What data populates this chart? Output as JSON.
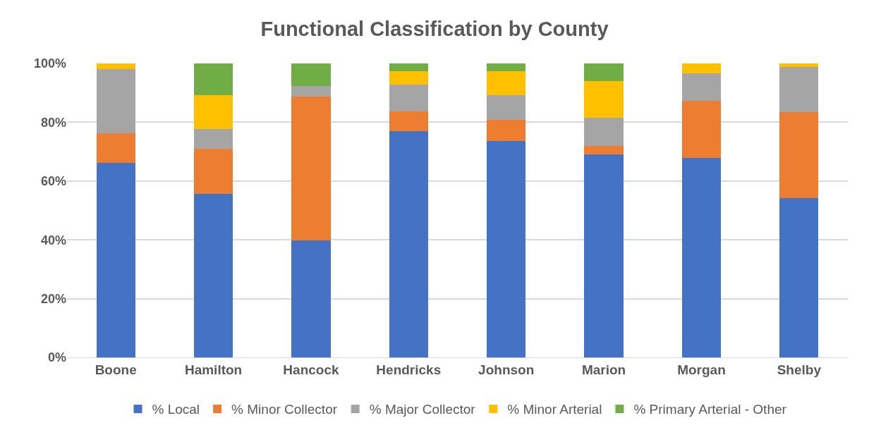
{
  "chart_data": {
    "type": "bar",
    "stacked": true,
    "title": "Functional Classification by County",
    "categories": [
      "Boone",
      "Hamilton",
      "Hancock",
      "Hendricks",
      "Johnson",
      "Marion",
      "Morgan",
      "Shelby"
    ],
    "series": [
      {
        "name": "% Local",
        "color": "#4472c4",
        "values": [
          66.2,
          55.7,
          39.7,
          77.0,
          73.7,
          69.0,
          67.9,
          54.1
        ]
      },
      {
        "name": "% Minor Collector",
        "color": "#ed7d31",
        "values": [
          10.1,
          15.4,
          49.0,
          6.6,
          7.1,
          3.0,
          19.4,
          29.4
        ]
      },
      {
        "name": "% Major Collector",
        "color": "#a5a5a5",
        "values": [
          21.7,
          6.7,
          3.6,
          9.1,
          8.3,
          9.5,
          9.4,
          15.4
        ]
      },
      {
        "name": "% Minor Arterial",
        "color": "#ffc000",
        "values": [
          2.0,
          11.3,
          0,
          4.7,
          8.3,
          12.5,
          3.3,
          1.1
        ]
      },
      {
        "name": "% Primary Arterial - Other",
        "color": "#70ad47",
        "values": [
          0,
          10.9,
          7.7,
          2.6,
          2.6,
          6.0,
          0,
          0
        ]
      }
    ],
    "ylim": [
      0,
      100
    ],
    "yticks": [
      {
        "value": 0,
        "label": "0%"
      },
      {
        "value": 20,
        "label": "20%"
      },
      {
        "value": 40,
        "label": "40%"
      },
      {
        "value": 60,
        "label": "60%"
      },
      {
        "value": 80,
        "label": "80%"
      },
      {
        "value": 100,
        "label": "100%"
      }
    ],
    "grid": "y",
    "legend": "bottom"
  }
}
